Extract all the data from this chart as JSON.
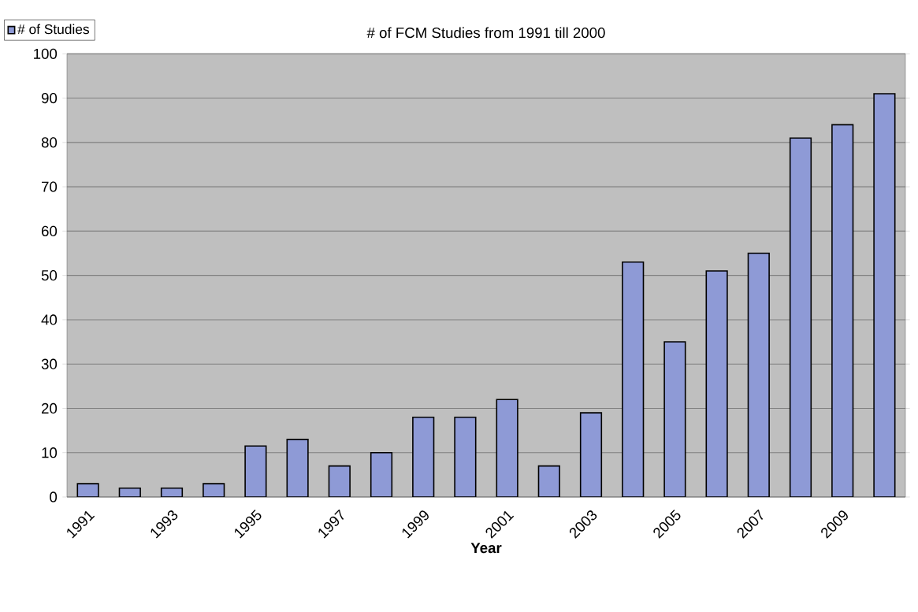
{
  "chart_data": {
    "type": "bar",
    "title": "# of FCM Studies from 1991 till 2000",
    "xlabel": "Year",
    "categories": [
      "1991",
      null,
      "1993",
      null,
      "1995",
      null,
      "1997",
      null,
      "1999",
      null,
      "2001",
      null,
      "2003",
      null,
      "2005",
      null,
      "2007",
      null,
      "2009",
      null
    ],
    "series": [
      {
        "name": "# of Studies",
        "color": "#8e9ad6",
        "values": [
          3,
          2,
          2,
          3,
          11.5,
          13,
          7,
          10,
          18,
          18,
          22,
          7,
          19,
          53,
          35,
          51,
          55,
          81,
          84,
          91
        ]
      }
    ],
    "ylim": [
      0,
      100
    ],
    "yticks": [
      0,
      10,
      20,
      30,
      40,
      50,
      60,
      70,
      80,
      90,
      100
    ],
    "grid": "y",
    "legend": "top left"
  }
}
